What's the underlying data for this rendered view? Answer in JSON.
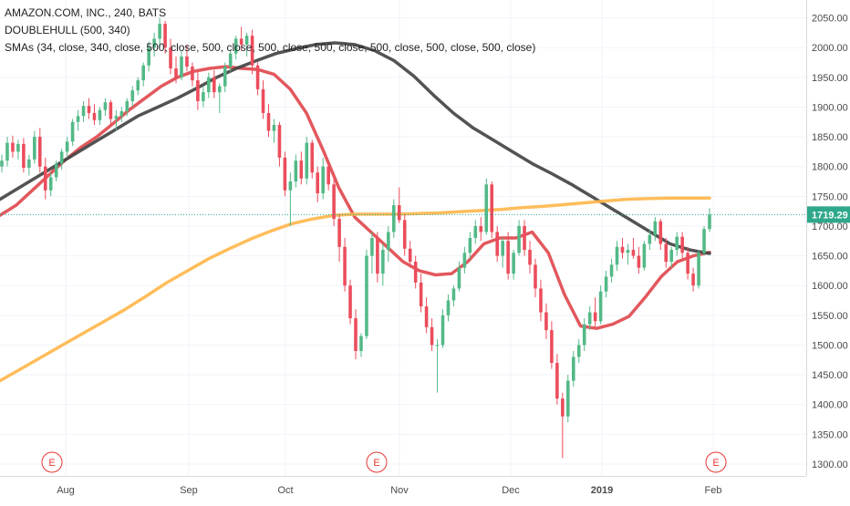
{
  "legend": {
    "title": "AMAZON.COM, INC., 240, BATS",
    "indicator1": "DOUBLEHULL (500, 340)",
    "indicator2": "SMAs (34, close, 340, close, 500, close, 500, close, 500, close, 500, close, 500, close, 500, close, 500, close)"
  },
  "colors": {
    "up": "#53b987",
    "down": "#eb4d5c",
    "sma_red": "#e04a4f",
    "sma_dark": "#444444",
    "sma_orange": "#ffb74d",
    "price_line": "#26a69a",
    "price_label_bg": "#2ea88a",
    "earnings": "#e53935",
    "axis_text": "#4a4a4a",
    "grid": "#f0f3fa"
  },
  "chart_data": {
    "type": "candlestick",
    "ylim": [
      1280,
      2080
    ],
    "y_ticks": [
      "2050.00",
      "2000.00",
      "1950.00",
      "1900.00",
      "1850.00",
      "1800.00",
      "1750.00",
      "1700.00",
      "1650.00",
      "1600.00",
      "1550.00",
      "1500.00",
      "1450.00",
      "1400.00",
      "1350.00",
      "1300.00"
    ],
    "x_ticks": [
      "Aug",
      "Sep",
      "Oct",
      "Nov",
      "Dec",
      "2019",
      "Feb"
    ],
    "last_price": "1719.29",
    "earnings_markers": [
      "E",
      "E",
      "E"
    ],
    "candles": [
      {
        "o": 1800,
        "h": 1820,
        "l": 1790,
        "c": 1810
      },
      {
        "o": 1810,
        "h": 1850,
        "l": 1800,
        "c": 1840
      },
      {
        "o": 1840,
        "h": 1852,
        "l": 1815,
        "c": 1825
      },
      {
        "o": 1825,
        "h": 1845,
        "l": 1812,
        "c": 1838
      },
      {
        "o": 1838,
        "h": 1848,
        "l": 1790,
        "c": 1798
      },
      {
        "o": 1798,
        "h": 1820,
        "l": 1785,
        "c": 1812
      },
      {
        "o": 1812,
        "h": 1860,
        "l": 1805,
        "c": 1850
      },
      {
        "o": 1850,
        "h": 1865,
        "l": 1790,
        "c": 1800
      },
      {
        "o": 1800,
        "h": 1815,
        "l": 1745,
        "c": 1760
      },
      {
        "o": 1760,
        "h": 1790,
        "l": 1750,
        "c": 1782
      },
      {
        "o": 1782,
        "h": 1810,
        "l": 1775,
        "c": 1805
      },
      {
        "o": 1805,
        "h": 1830,
        "l": 1795,
        "c": 1825
      },
      {
        "o": 1825,
        "h": 1850,
        "l": 1815,
        "c": 1842
      },
      {
        "o": 1842,
        "h": 1880,
        "l": 1835,
        "c": 1875
      },
      {
        "o": 1875,
        "h": 1895,
        "l": 1860,
        "c": 1885
      },
      {
        "o": 1885,
        "h": 1910,
        "l": 1875,
        "c": 1902
      },
      {
        "o": 1902,
        "h": 1915,
        "l": 1880,
        "c": 1890
      },
      {
        "o": 1890,
        "h": 1905,
        "l": 1870,
        "c": 1878
      },
      {
        "o": 1878,
        "h": 1900,
        "l": 1870,
        "c": 1895
      },
      {
        "o": 1895,
        "h": 1915,
        "l": 1885,
        "c": 1908
      },
      {
        "o": 1908,
        "h": 1912,
        "l": 1870,
        "c": 1880
      },
      {
        "o": 1880,
        "h": 1895,
        "l": 1860,
        "c": 1885
      },
      {
        "o": 1885,
        "h": 1900,
        "l": 1875,
        "c": 1893
      },
      {
        "o": 1893,
        "h": 1915,
        "l": 1885,
        "c": 1910
      },
      {
        "o": 1910,
        "h": 1935,
        "l": 1900,
        "c": 1928
      },
      {
        "o": 1928,
        "h": 1950,
        "l": 1920,
        "c": 1945
      },
      {
        "o": 1945,
        "h": 1975,
        "l": 1935,
        "c": 1970
      },
      {
        "o": 1970,
        "h": 2010,
        "l": 1960,
        "c": 2000
      },
      {
        "o": 2000,
        "h": 2025,
        "l": 1985,
        "c": 2015
      },
      {
        "o": 2015,
        "h": 2050,
        "l": 2000,
        "c": 2040
      },
      {
        "o": 2040,
        "h": 2045,
        "l": 1990,
        "c": 2000
      },
      {
        "o": 2000,
        "h": 2015,
        "l": 1955,
        "c": 1965
      },
      {
        "o": 1965,
        "h": 1985,
        "l": 1940,
        "c": 1950
      },
      {
        "o": 1950,
        "h": 1995,
        "l": 1945,
        "c": 1985
      },
      {
        "o": 1985,
        "h": 2005,
        "l": 1960,
        "c": 1968
      },
      {
        "o": 1968,
        "h": 1975,
        "l": 1935,
        "c": 1945
      },
      {
        "o": 1945,
        "h": 1960,
        "l": 1895,
        "c": 1910
      },
      {
        "o": 1910,
        "h": 1935,
        "l": 1900,
        "c": 1925
      },
      {
        "o": 1925,
        "h": 1958,
        "l": 1915,
        "c": 1950
      },
      {
        "o": 1950,
        "h": 1962,
        "l": 1915,
        "c": 1925
      },
      {
        "o": 1925,
        "h": 1940,
        "l": 1890,
        "c": 1935
      },
      {
        "o": 1935,
        "h": 1975,
        "l": 1925,
        "c": 1968
      },
      {
        "o": 1968,
        "h": 1995,
        "l": 1960,
        "c": 1990
      },
      {
        "o": 1990,
        "h": 2020,
        "l": 1980,
        "c": 2015
      },
      {
        "o": 2015,
        "h": 2035,
        "l": 1995,
        "c": 2005
      },
      {
        "o": 2005,
        "h": 2025,
        "l": 1985,
        "c": 2020
      },
      {
        "o": 2020,
        "h": 2030,
        "l": 1955,
        "c": 1970
      },
      {
        "o": 1970,
        "h": 1975,
        "l": 1920,
        "c": 1930
      },
      {
        "o": 1930,
        "h": 1945,
        "l": 1880,
        "c": 1890
      },
      {
        "o": 1890,
        "h": 1905,
        "l": 1850,
        "c": 1860
      },
      {
        "o": 1860,
        "h": 1880,
        "l": 1840,
        "c": 1870
      },
      {
        "o": 1870,
        "h": 1875,
        "l": 1800,
        "c": 1815
      },
      {
        "o": 1815,
        "h": 1825,
        "l": 1750,
        "c": 1760
      },
      {
        "o": 1760,
        "h": 1790,
        "l": 1700,
        "c": 1775
      },
      {
        "o": 1775,
        "h": 1820,
        "l": 1765,
        "c": 1810
      },
      {
        "o": 1810,
        "h": 1825,
        "l": 1770,
        "c": 1780
      },
      {
        "o": 1780,
        "h": 1850,
        "l": 1770,
        "c": 1840
      },
      {
        "o": 1840,
        "h": 1845,
        "l": 1780,
        "c": 1790
      },
      {
        "o": 1790,
        "h": 1800,
        "l": 1740,
        "c": 1755
      },
      {
        "o": 1755,
        "h": 1815,
        "l": 1745,
        "c": 1800
      },
      {
        "o": 1800,
        "h": 1810,
        "l": 1760,
        "c": 1770
      },
      {
        "o": 1770,
        "h": 1790,
        "l": 1700,
        "c": 1712
      },
      {
        "o": 1712,
        "h": 1720,
        "l": 1640,
        "c": 1665
      },
      {
        "o": 1665,
        "h": 1680,
        "l": 1590,
        "c": 1600
      },
      {
        "o": 1600,
        "h": 1610,
        "l": 1535,
        "c": 1545
      },
      {
        "o": 1545,
        "h": 1560,
        "l": 1476,
        "c": 1490
      },
      {
        "o": 1490,
        "h": 1520,
        "l": 1480,
        "c": 1515
      },
      {
        "o": 1515,
        "h": 1660,
        "l": 1510,
        "c": 1650
      },
      {
        "o": 1650,
        "h": 1690,
        "l": 1620,
        "c": 1680
      },
      {
        "o": 1680,
        "h": 1690,
        "l": 1605,
        "c": 1620
      },
      {
        "o": 1620,
        "h": 1670,
        "l": 1600,
        "c": 1660
      },
      {
        "o": 1660,
        "h": 1700,
        "l": 1640,
        "c": 1690
      },
      {
        "o": 1690,
        "h": 1745,
        "l": 1680,
        "c": 1735
      },
      {
        "o": 1735,
        "h": 1765,
        "l": 1705,
        "c": 1710
      },
      {
        "o": 1710,
        "h": 1720,
        "l": 1650,
        "c": 1662
      },
      {
        "o": 1662,
        "h": 1675,
        "l": 1630,
        "c": 1640
      },
      {
        "o": 1640,
        "h": 1650,
        "l": 1595,
        "c": 1605
      },
      {
        "o": 1605,
        "h": 1620,
        "l": 1555,
        "c": 1565
      },
      {
        "o": 1565,
        "h": 1580,
        "l": 1520,
        "c": 1530
      },
      {
        "o": 1530,
        "h": 1545,
        "l": 1490,
        "c": 1500
      },
      {
        "o": 1500,
        "h": 1510,
        "l": 1420,
        "c": 1500
      },
      {
        "o": 1500,
        "h": 1560,
        "l": 1495,
        "c": 1550
      },
      {
        "o": 1550,
        "h": 1585,
        "l": 1540,
        "c": 1575
      },
      {
        "o": 1575,
        "h": 1600,
        "l": 1565,
        "c": 1595
      },
      {
        "o": 1595,
        "h": 1640,
        "l": 1590,
        "c": 1630
      },
      {
        "o": 1630,
        "h": 1665,
        "l": 1620,
        "c": 1655
      },
      {
        "o": 1655,
        "h": 1690,
        "l": 1645,
        "c": 1680
      },
      {
        "o": 1680,
        "h": 1710,
        "l": 1670,
        "c": 1700
      },
      {
        "o": 1700,
        "h": 1715,
        "l": 1675,
        "c": 1690
      },
      {
        "o": 1690,
        "h": 1780,
        "l": 1685,
        "c": 1770
      },
      {
        "o": 1770,
        "h": 1775,
        "l": 1680,
        "c": 1690
      },
      {
        "o": 1690,
        "h": 1700,
        "l": 1640,
        "c": 1650
      },
      {
        "o": 1650,
        "h": 1680,
        "l": 1630,
        "c": 1675
      },
      {
        "o": 1675,
        "h": 1690,
        "l": 1610,
        "c": 1620
      },
      {
        "o": 1620,
        "h": 1660,
        "l": 1610,
        "c": 1655
      },
      {
        "o": 1655,
        "h": 1710,
        "l": 1650,
        "c": 1700
      },
      {
        "o": 1700,
        "h": 1710,
        "l": 1650,
        "c": 1660
      },
      {
        "o": 1660,
        "h": 1675,
        "l": 1620,
        "c": 1635
      },
      {
        "o": 1635,
        "h": 1645,
        "l": 1580,
        "c": 1595
      },
      {
        "o": 1595,
        "h": 1610,
        "l": 1540,
        "c": 1555
      },
      {
        "o": 1555,
        "h": 1570,
        "l": 1510,
        "c": 1525
      },
      {
        "o": 1525,
        "h": 1540,
        "l": 1460,
        "c": 1470
      },
      {
        "o": 1470,
        "h": 1485,
        "l": 1400,
        "c": 1410
      },
      {
        "o": 1410,
        "h": 1420,
        "l": 1310,
        "c": 1380
      },
      {
        "o": 1380,
        "h": 1450,
        "l": 1370,
        "c": 1440
      },
      {
        "o": 1440,
        "h": 1490,
        "l": 1430,
        "c": 1480
      },
      {
        "o": 1480,
        "h": 1510,
        "l": 1470,
        "c": 1500
      },
      {
        "o": 1500,
        "h": 1545,
        "l": 1490,
        "c": 1535
      },
      {
        "o": 1535,
        "h": 1565,
        "l": 1525,
        "c": 1555
      },
      {
        "o": 1555,
        "h": 1580,
        "l": 1530,
        "c": 1540
      },
      {
        "o": 1540,
        "h": 1600,
        "l": 1535,
        "c": 1590
      },
      {
        "o": 1590,
        "h": 1625,
        "l": 1580,
        "c": 1615
      },
      {
        "o": 1615,
        "h": 1645,
        "l": 1605,
        "c": 1635
      },
      {
        "o": 1635,
        "h": 1675,
        "l": 1625,
        "c": 1665
      },
      {
        "o": 1665,
        "h": 1680,
        "l": 1645,
        "c": 1655
      },
      {
        "o": 1655,
        "h": 1670,
        "l": 1635,
        "c": 1660
      },
      {
        "o": 1660,
        "h": 1680,
        "l": 1645,
        "c": 1650
      },
      {
        "o": 1650,
        "h": 1665,
        "l": 1620,
        "c": 1630
      },
      {
        "o": 1630,
        "h": 1675,
        "l": 1625,
        "c": 1670
      },
      {
        "o": 1670,
        "h": 1695,
        "l": 1660,
        "c": 1685
      },
      {
        "o": 1685,
        "h": 1715,
        "l": 1675,
        "c": 1708
      },
      {
        "o": 1708,
        "h": 1712,
        "l": 1660,
        "c": 1670
      },
      {
        "o": 1670,
        "h": 1680,
        "l": 1630,
        "c": 1640
      },
      {
        "o": 1640,
        "h": 1665,
        "l": 1630,
        "c": 1660
      },
      {
        "o": 1660,
        "h": 1690,
        "l": 1650,
        "c": 1682
      },
      {
        "o": 1682,
        "h": 1690,
        "l": 1645,
        "c": 1655
      },
      {
        "o": 1655,
        "h": 1665,
        "l": 1610,
        "c": 1620
      },
      {
        "o": 1620,
        "h": 1630,
        "l": 1590,
        "c": 1600
      },
      {
        "o": 1600,
        "h": 1660,
        "l": 1595,
        "c": 1655
      },
      {
        "o": 1655,
        "h": 1700,
        "l": 1650,
        "c": 1695
      },
      {
        "o": 1695,
        "h": 1730,
        "l": 1690,
        "c": 1719.29
      }
    ],
    "series": [
      {
        "color": "#e04a4f",
        "values": [
          1718,
          1735,
          1760,
          1785,
          1810,
          1832,
          1850,
          1872,
          1895,
          1915,
          1935,
          1950,
          1960,
          1965,
          1968,
          1965,
          1963,
          1955,
          1930,
          1890,
          1830,
          1765,
          1715,
          1690,
          1665,
          1640,
          1625,
          1618,
          1620,
          1640,
          1670,
          1680,
          1680,
          1690,
          1655,
          1585,
          1532,
          1528,
          1535,
          1548,
          1580,
          1615,
          1640,
          1650,
          1656
        ]
      },
      {
        "color": "#444444",
        "values": [
          1745,
          1765,
          1785,
          1805,
          1825,
          1845,
          1865,
          1885,
          1900,
          1915,
          1932,
          1950,
          1965,
          1978,
          1990,
          1998,
          2005,
          2008,
          2005,
          1995,
          1978,
          1952,
          1920,
          1890,
          1865,
          1845,
          1825,
          1805,
          1788,
          1770,
          1750,
          1730,
          1710,
          1690,
          1670,
          1660,
          1654
        ]
      },
      {
        "color": "#ffb74d",
        "values": [
          1440,
          1460,
          1480,
          1500,
          1520,
          1540,
          1560,
          1582,
          1605,
          1625,
          1645,
          1662,
          1678,
          1692,
          1704,
          1712,
          1718,
          1720,
          1720,
          1720,
          1721,
          1722,
          1724,
          1726,
          1728,
          1731,
          1733,
          1736,
          1739,
          1742,
          1745,
          1746,
          1747,
          1747,
          1747
        ]
      }
    ]
  }
}
